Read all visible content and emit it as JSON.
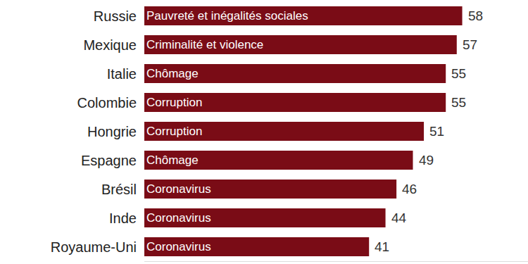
{
  "chart_data": {
    "type": "bar",
    "orientation": "horizontal",
    "categories": [
      "Russie",
      "Mexique",
      "Italie",
      "Colombie",
      "Hongrie",
      "Espagne",
      "Brésil",
      "Inde",
      "Royaume-Uni"
    ],
    "values": [
      58,
      57,
      55,
      55,
      51,
      49,
      46,
      44,
      41
    ],
    "bar_texts": [
      "Pauvreté et inégalités sociales",
      "Criminalité et violence",
      "Chômage",
      "Corruption",
      "Corruption",
      "Chômage",
      "Coronavirus",
      "Coronavirus",
      "Coronavirus"
    ],
    "color": "#7a0c16",
    "data_labels": true,
    "xlim": [
      0,
      70
    ],
    "tick_labels": "y",
    "grid": false
  }
}
